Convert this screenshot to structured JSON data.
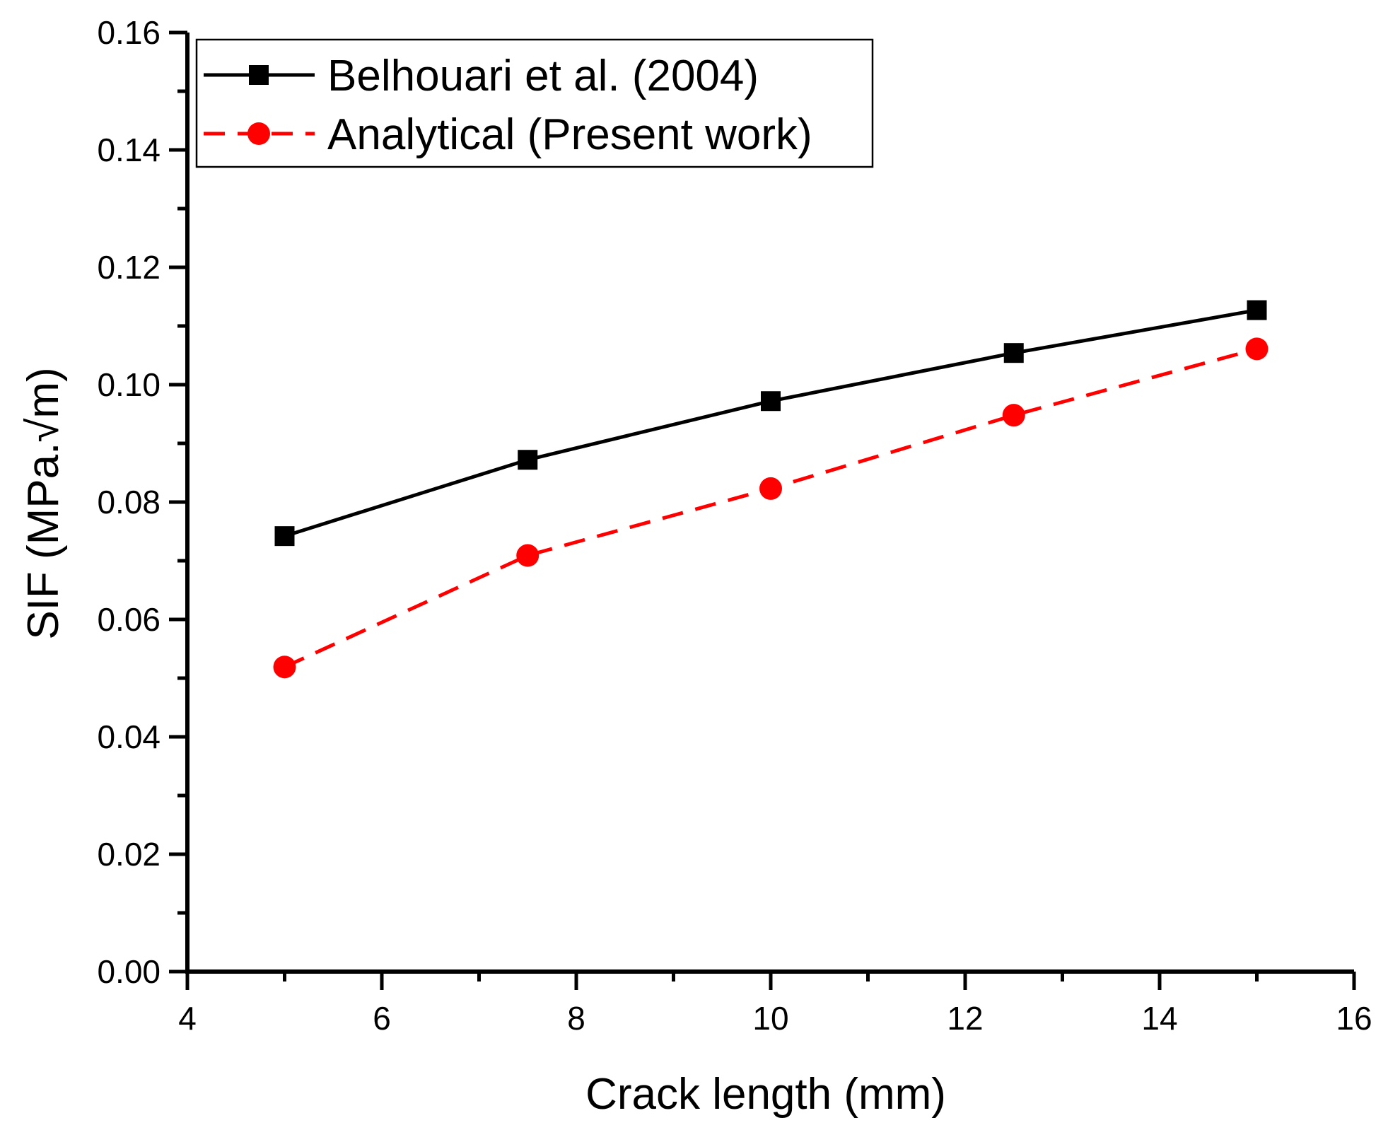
{
  "chart_data": {
    "type": "line",
    "title": "",
    "xlabel": "Crack length (mm)",
    "ylabel": "SIF (MPa.√m)",
    "xlim": [
      4,
      16
    ],
    "ylim": [
      0,
      0.16
    ],
    "x_ticks": [
      4,
      6,
      8,
      10,
      12,
      14,
      16
    ],
    "x_tick_labels": [
      "4",
      "6",
      "8",
      "10",
      "12",
      "14",
      "16"
    ],
    "y_ticks": [
      0,
      0.02,
      0.04,
      0.06,
      0.08,
      0.1,
      0.12,
      0.14,
      0.16
    ],
    "y_tick_labels": [
      "0.00",
      "0.02",
      "0.04",
      "0.06",
      "0.08",
      "0.10",
      "0.12",
      "0.14",
      "0.16"
    ],
    "grid": false,
    "legend_position": "top-left",
    "series": [
      {
        "name": "Belhouari et al. (2004)",
        "color": "#000000",
        "line_style": "solid",
        "marker": "square",
        "x": [
          5,
          7.5,
          10,
          12.5,
          15
        ],
        "values": [
          0.0742,
          0.0872,
          0.0972,
          0.1054,
          0.1127
        ]
      },
      {
        "name": "Analytical (Present work)",
        "color": "#ff0000",
        "line_style": "dashed",
        "marker": "circle",
        "x": [
          5,
          7.5,
          10,
          12.5,
          15
        ],
        "values": [
          0.0519,
          0.0709,
          0.0823,
          0.0948,
          0.1061
        ]
      }
    ]
  }
}
